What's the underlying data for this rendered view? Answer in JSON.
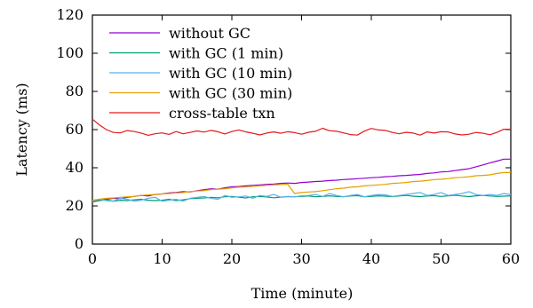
{
  "chart_data": {
    "type": "line",
    "xlabel": "Time (minute)",
    "ylabel": "Latency (ms)",
    "xlim": [
      0,
      60
    ],
    "ylim": [
      0,
      120
    ],
    "xticks": [
      "0",
      "10",
      "20",
      "30",
      "40",
      "50",
      "60"
    ],
    "yticks": [
      "0",
      "20",
      "40",
      "60",
      "80",
      "100",
      "120"
    ],
    "grid": false,
    "legend_position": "top-left",
    "x": [
      0,
      1,
      2,
      3,
      4,
      5,
      6,
      7,
      8,
      9,
      10,
      11,
      12,
      13,
      14,
      15,
      16,
      17,
      18,
      19,
      20,
      21,
      22,
      23,
      24,
      25,
      26,
      27,
      28,
      29,
      30,
      31,
      32,
      33,
      34,
      35,
      36,
      37,
      38,
      39,
      40,
      41,
      42,
      43,
      44,
      45,
      46,
      47,
      48,
      49,
      50,
      51,
      52,
      53,
      54,
      55,
      56,
      57,
      58,
      59,
      60
    ],
    "series": [
      {
        "name": "without GC",
        "color": "#9400d3",
        "values": [
          22.5,
          23,
          23.5,
          24,
          23.8,
          24.5,
          25,
          25.5,
          25.2,
          26,
          26.3,
          26.8,
          27,
          27.5,
          27.3,
          28,
          28.5,
          29,
          28.8,
          29.5,
          30,
          30.2,
          30.5,
          30.8,
          31,
          31.3,
          31.5,
          31.8,
          32,
          31.8,
          32.3,
          32.5,
          32.8,
          33,
          33.3,
          33.5,
          33.8,
          34,
          34.3,
          34.5,
          34.8,
          35,
          35.3,
          35.5,
          35.8,
          36,
          36.3,
          36.5,
          37,
          37.3,
          37.8,
          38,
          38.5,
          39,
          39.5,
          40.5,
          41.5,
          42.5,
          43.5,
          44.5,
          44.5
        ]
      },
      {
        "name": "with GC (1 min)",
        "color": "#009e73",
        "values": [
          22,
          22.8,
          23.2,
          22.5,
          23,
          22.8,
          23.2,
          23.5,
          23,
          22.8,
          23,
          23.5,
          22.8,
          23.2,
          23.8,
          24,
          24.2,
          24.5,
          24.3,
          24.8,
          25,
          24.6,
          24.2,
          24.8,
          25,
          24.7,
          24.3,
          24.6,
          24.9,
          24.8,
          25,
          25.2,
          24.8,
          25,
          25.3,
          25,
          24.8,
          25.2,
          25.4,
          24.8,
          25,
          25.3,
          25.1,
          24.9,
          25.2,
          25.5,
          25.1,
          24.9,
          25.2,
          25.4,
          25,
          25.3,
          25.6,
          25.2,
          24.9,
          25.3,
          25.5,
          25.2,
          25,
          25.1,
          25.3
        ]
      },
      {
        "name": "with GC (10 min)",
        "color": "#56b4e9",
        "values": [
          22.5,
          23.5,
          22.8,
          22.5,
          24,
          23.5,
          22.5,
          23,
          24,
          24.5,
          22.5,
          23,
          23.5,
          22.5,
          24,
          24.5,
          25,
          24,
          23.5,
          25.5,
          24.5,
          24.8,
          25.2,
          24,
          25.5,
          25,
          26,
          24.5,
          25,
          24.8,
          25.3,
          25.5,
          26,
          25,
          26.5,
          25.5,
          24.8,
          25.5,
          26,
          24.8,
          25.5,
          26,
          25.8,
          25,
          25.5,
          26,
          26.5,
          27,
          25.5,
          26,
          27,
          25.5,
          26,
          26.5,
          27.5,
          26,
          25.5,
          26,
          25.5,
          26.5,
          26
        ]
      },
      {
        "name": "with GC (30 min)",
        "color": "#e69f00",
        "values": [
          23,
          23.5,
          24,
          24.2,
          24.5,
          24.8,
          25,
          25.5,
          25.8,
          26,
          26.3,
          26.5,
          26.8,
          27,
          27.5,
          27.8,
          28,
          28.5,
          28.8,
          29,
          29.5,
          29.8,
          30,
          30.3,
          30.5,
          30.8,
          31,
          31.2,
          31.4,
          26.5,
          27,
          27.3,
          27.5,
          28,
          28.5,
          29,
          29.3,
          29.8,
          30,
          30.5,
          30.8,
          31,
          31.3,
          31.8,
          32,
          32.3,
          32.8,
          33,
          33.3,
          33.8,
          34,
          34.3,
          34.8,
          35,
          35.3,
          35.8,
          36,
          36.3,
          37,
          37.5,
          37.5
        ]
      },
      {
        "name": "cross-table txn",
        "color": "#e41a1c",
        "values": [
          65.5,
          62.5,
          60,
          58.5,
          58.3,
          59.5,
          59,
          58.2,
          57,
          57.8,
          58.3,
          57.5,
          59,
          57.8,
          58.5,
          59.3,
          58.7,
          59.6,
          58.9,
          57.7,
          59,
          59.8,
          58.8,
          58.1,
          57.2,
          58.2,
          58.8,
          58.1,
          58.9,
          58.4,
          57.6,
          58.6,
          59.1,
          60.7,
          59.4,
          59.1,
          58.3,
          57.4,
          57.1,
          59.2,
          60.6,
          59.8,
          59.6,
          58.5,
          57.8,
          58.6,
          58.2,
          57.1,
          58.8,
          58.2,
          58.9,
          58.8,
          57.7,
          57.2,
          57.6,
          58.5,
          58.1,
          57.3,
          58.5,
          60.2,
          60.2
        ]
      }
    ]
  }
}
